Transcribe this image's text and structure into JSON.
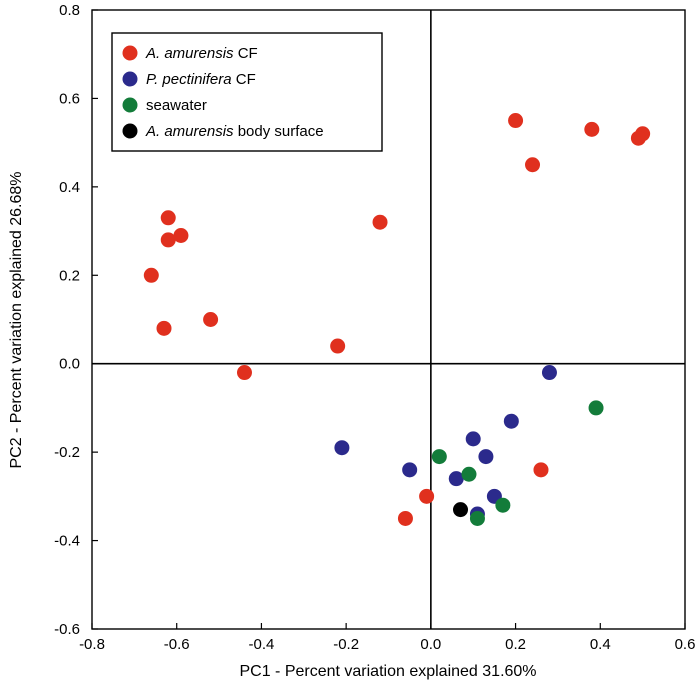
{
  "chart_data": {
    "type": "scatter",
    "title": "",
    "xlabel": "PC1 - Percent variation explained 31.60%",
    "ylabel": "PC2 - Percent variation explained 26.68%",
    "xlim": [
      -0.8,
      0.6
    ],
    "ylim": [
      -0.6,
      0.8
    ],
    "xticks": [
      -0.8,
      -0.6,
      -0.4,
      -0.2,
      0.0,
      0.2,
      0.4,
      0.6
    ],
    "yticks": [
      -0.6,
      -0.4,
      -0.2,
      0.0,
      0.2,
      0.4,
      0.6,
      0.8
    ],
    "xtick_labels": [
      "-0.8",
      "-0.6",
      "-0.4",
      "-0.2",
      "0.0",
      "0.2",
      "0.4",
      "0.6"
    ],
    "ytick_labels": [
      "-0.6",
      "-0.4",
      "-0.2",
      "0.0",
      "0.2",
      "0.4",
      "0.6",
      "0.8"
    ],
    "zero_lines": true,
    "grid": false,
    "legend_position": "top-left",
    "series": [
      {
        "name_italic": "A. amurensis",
        "name_suffix": " CF",
        "color": "#e0301e",
        "points": [
          [
            -0.62,
            0.33
          ],
          [
            -0.62,
            0.28
          ],
          [
            -0.59,
            0.29
          ],
          [
            -0.66,
            0.2
          ],
          [
            -0.63,
            0.08
          ],
          [
            -0.52,
            0.1
          ],
          [
            -0.44,
            -0.02
          ],
          [
            -0.22,
            0.04
          ],
          [
            -0.12,
            0.32
          ],
          [
            0.2,
            0.55
          ],
          [
            0.24,
            0.45
          ],
          [
            0.38,
            0.53
          ],
          [
            0.5,
            0.52
          ],
          [
            0.49,
            0.51
          ],
          [
            0.26,
            -0.24
          ],
          [
            -0.01,
            -0.3
          ],
          [
            -0.06,
            -0.35
          ]
        ]
      },
      {
        "name_italic": "P. pectinifera",
        "name_suffix": " CF",
        "color": "#2b2a8c",
        "points": [
          [
            -0.21,
            -0.19
          ],
          [
            -0.05,
            -0.24
          ],
          [
            0.06,
            -0.26
          ],
          [
            0.1,
            -0.17
          ],
          [
            0.13,
            -0.21
          ],
          [
            0.19,
            -0.13
          ],
          [
            0.28,
            -0.02
          ],
          [
            0.15,
            -0.3
          ],
          [
            0.11,
            -0.34
          ]
        ]
      },
      {
        "name_italic": "",
        "name_suffix": "seawater",
        "color": "#137c3a",
        "points": [
          [
            0.02,
            -0.21
          ],
          [
            0.09,
            -0.25
          ],
          [
            0.17,
            -0.32
          ],
          [
            0.11,
            -0.35
          ],
          [
            0.39,
            -0.1
          ]
        ]
      },
      {
        "name_italic": "A. amurensis",
        "name_suffix": " body surface",
        "color": "#000000",
        "points": [
          [
            0.07,
            -0.33
          ]
        ]
      }
    ]
  }
}
